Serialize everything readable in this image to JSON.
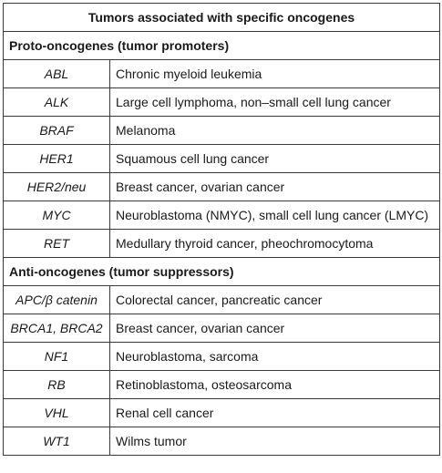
{
  "table": {
    "title": "Tumors associated with specific oncogenes",
    "sections": [
      {
        "heading": "Proto-oncogenes (tumor promoters)",
        "rows": [
          {
            "gene": "ABL",
            "tumors": "Chronic myeloid leukemia"
          },
          {
            "gene": "ALK",
            "tumors": "Large cell lymphoma, non–small cell lung cancer"
          },
          {
            "gene": "BRAF",
            "tumors": "Melanoma"
          },
          {
            "gene": "HER1",
            "tumors": "Squamous cell lung cancer"
          },
          {
            "gene": "HER2/neu",
            "tumors": "Breast cancer, ovarian cancer"
          },
          {
            "gene": "MYC",
            "tumors": "Neuroblastoma (NMYC), small cell lung cancer (LMYC)"
          },
          {
            "gene": "RET",
            "tumors": "Medullary thyroid cancer, pheochromocytoma"
          }
        ]
      },
      {
        "heading": "Anti-oncogenes (tumor suppressors)",
        "rows": [
          {
            "gene": "APC/β catenin",
            "tumors": "Colorectal cancer, pancreatic cancer"
          },
          {
            "gene": "BRCA1, BRCA2",
            "tumors": "Breast cancer, ovarian cancer"
          },
          {
            "gene": "NF1",
            "tumors": "Neuroblastoma, sarcoma"
          },
          {
            "gene": "RB",
            "tumors": "Retinoblastoma, osteosarcoma"
          },
          {
            "gene": "VHL",
            "tumors": "Renal cell cancer"
          },
          {
            "gene": "WT1",
            "tumors": "Wilms tumor"
          }
        ]
      }
    ]
  }
}
